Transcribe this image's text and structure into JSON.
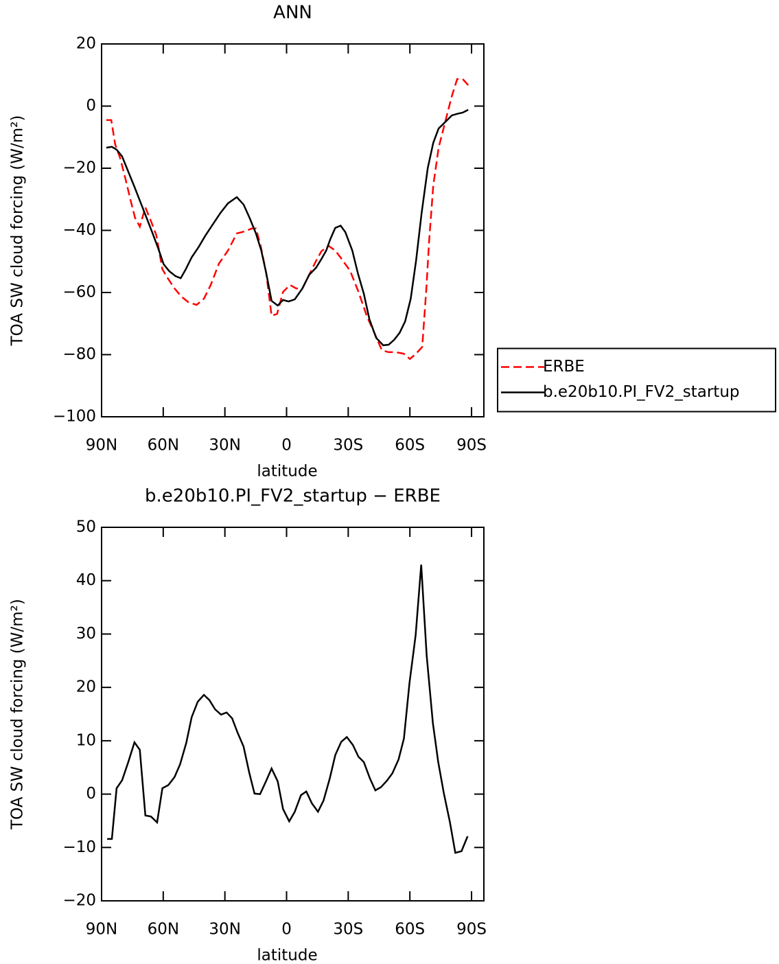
{
  "chart_data": [
    {
      "type": "line",
      "title": "ANN",
      "xlabel": "latitude",
      "ylabel": "TOA SW cloud forcing (W/m²)",
      "xlim": [
        90,
        -96
      ],
      "ylim": [
        -100,
        20
      ],
      "xticks": [
        {
          "value": 90,
          "label": "90N"
        },
        {
          "value": 60,
          "label": "60N"
        },
        {
          "value": 30,
          "label": "30N"
        },
        0,
        {
          "value": -30,
          "label": "30S"
        },
        {
          "value": -60,
          "label": "60S"
        },
        {
          "value": -90,
          "label": "90S"
        }
      ],
      "yticks": [
        20,
        0,
        {
          "value": -20,
          "label": "−20"
        },
        {
          "value": -40,
          "label": "−40"
        },
        {
          "value": -60,
          "label": "−60"
        },
        {
          "value": -80,
          "label": "−80"
        },
        {
          "value": -100,
          "label": "−100"
        }
      ],
      "legend": "right",
      "series": [
        {
          "name": "ERBE",
          "color": "#ff0000",
          "dash": true,
          "x": [
            87.7,
            85.3,
            83.4,
            81,
            78.4,
            76,
            73.7,
            71.4,
            68.7,
            66,
            63.4,
            60.4,
            57.8,
            54.5,
            51.2,
            47.8,
            43.8,
            40.2,
            36.9,
            32.9,
            28.5,
            24.2,
            20.2,
            16.9,
            14.9,
            12.6,
            9.9,
            7.3,
            4.6,
            1.7,
            -1.7,
            -4.7,
            -7.7,
            -11,
            -14.4,
            -17,
            -20.4,
            -23.7,
            -27,
            -31,
            -35,
            -39,
            -42.7,
            -46.4,
            -49.7,
            -53,
            -57,
            -60,
            -63,
            -66,
            -68,
            -69.4,
            -71.4,
            -74,
            -77.4,
            -80.4,
            -83,
            -85.7,
            -88.7
          ],
          "values": [
            -4.5,
            -4.5,
            -12.3,
            -16.7,
            -23.3,
            -30,
            -36,
            -38.8,
            -32.6,
            -37,
            -41.5,
            -52.5,
            -55.4,
            -58.7,
            -61.3,
            -63.1,
            -64,
            -62,
            -57.6,
            -50.7,
            -46.5,
            -41,
            -40.3,
            -39.4,
            -39.4,
            -45,
            -53.8,
            -67.5,
            -66.9,
            -59.8,
            -57.6,
            -58.7,
            -58.7,
            -54.3,
            -49.8,
            -46.7,
            -45,
            -46.5,
            -49.4,
            -53.1,
            -59.8,
            -67.5,
            -73,
            -78.6,
            -79.2,
            -79.2,
            -79.7,
            -81.4,
            -79.7,
            -77.5,
            -58.7,
            -43.2,
            -25.5,
            -13.4,
            -4.5,
            3.2,
            8.7,
            8.7,
            6.5
          ]
        },
        {
          "name": "b.e20b10.PI_FV2_startup",
          "color": "#000000",
          "dash": false,
          "x": [
            87.7,
            85,
            82.7,
            80,
            77,
            74,
            71.4,
            68.4,
            65.4,
            62.4,
            59.8,
            57.1,
            54.1,
            51.5,
            49.2,
            46.2,
            42.8,
            39.5,
            35.5,
            32.2,
            28.5,
            24.2,
            20.9,
            17.9,
            14.9,
            12.3,
            9.9,
            7.3,
            4.3,
            1.7,
            -1,
            -4,
            -7.7,
            -11,
            -14.4,
            -17,
            -19.3,
            -21.3,
            -23.7,
            -26.3,
            -28.6,
            -32,
            -34.7,
            -37.6,
            -40.3,
            -43.6,
            -47,
            -49.7,
            -52.4,
            -55,
            -57.7,
            -60.4,
            -63,
            -65.7,
            -68.7,
            -71.4,
            -74,
            -77.4,
            -80.4,
            -83,
            -85.7,
            -88.4
          ],
          "values": [
            -13.4,
            -13.1,
            -14,
            -16.2,
            -21.1,
            -26,
            -30.4,
            -35.5,
            -40.6,
            -45.9,
            -50.9,
            -53.1,
            -54.7,
            -55.4,
            -52.7,
            -48.7,
            -45.4,
            -41.7,
            -37.7,
            -34.4,
            -31.3,
            -29.3,
            -31.7,
            -36.1,
            -41,
            -46.5,
            -53.8,
            -62.7,
            -64.2,
            -62.4,
            -62.9,
            -62.2,
            -58.7,
            -54.3,
            -52,
            -49.2,
            -46.5,
            -42.8,
            -39.2,
            -38.5,
            -40.6,
            -46.5,
            -53.8,
            -60.4,
            -68.6,
            -74.6,
            -77,
            -76.8,
            -75.2,
            -73,
            -69.3,
            -62,
            -49.8,
            -34.4,
            -20,
            -11.8,
            -7.2,
            -5,
            -3,
            -2.5,
            -2.1,
            -1.2
          ]
        }
      ]
    },
    {
      "type": "line",
      "title": "b.e20b10.PI_FV2_startup − ERBE",
      "xlabel": "latitude",
      "ylabel": "TOA SW cloud forcing (W/m²)",
      "xlim": [
        90,
        -96
      ],
      "ylim": [
        -20,
        50
      ],
      "xticks": [
        {
          "value": 90,
          "label": "90N"
        },
        {
          "value": 60,
          "label": "60N"
        },
        {
          "value": 30,
          "label": "30N"
        },
        0,
        {
          "value": -30,
          "label": "30S"
        },
        {
          "value": -60,
          "label": "60S"
        },
        {
          "value": -90,
          "label": "90S"
        }
      ],
      "yticks": [
        50,
        40,
        30,
        20,
        10,
        0,
        {
          "value": -10,
          "label": "−10"
        },
        {
          "value": -20,
          "label": "−20"
        }
      ],
      "series": [
        {
          "color": "#000000",
          "dash": false,
          "x": [
            87.3,
            85,
            82.7,
            80,
            77,
            74,
            71.4,
            68.7,
            66,
            63,
            60.4,
            57.5,
            54.5,
            51.8,
            48.8,
            46.2,
            43.2,
            40.2,
            37.5,
            34.8,
            31.9,
            29.2,
            26.5,
            23.9,
            20.9,
            18.2,
            15.6,
            12.9,
            9.9,
            7.3,
            4.3,
            1.7,
            -1.3,
            -4,
            -7,
            -9.6,
            -12.3,
            -15.3,
            -18,
            -21,
            -23.7,
            -26.6,
            -29.3,
            -32.3,
            -35,
            -37.6,
            -40.6,
            -43.2,
            -45.9,
            -48.8,
            -51.5,
            -54.5,
            -57.1,
            -59.8,
            -62.8,
            -65.5,
            -68.2,
            -71.2,
            -73.8,
            -76.5,
            -79.5,
            -82.1,
            -85.1,
            -88.1
          ],
          "values": [
            -8.4,
            -8.4,
            1.1,
            2.6,
            6,
            9.7,
            8.3,
            -4,
            -4.2,
            -5.3,
            1.1,
            1.7,
            3.2,
            5.6,
            9.6,
            14.4,
            17.3,
            18.6,
            17.6,
            15.9,
            14.9,
            15.3,
            14.2,
            11.6,
            8.9,
            4.1,
            0.1,
            0,
            2.5,
            4.8,
            2.4,
            -2.8,
            -5.1,
            -3.3,
            -0.2,
            0.5,
            -1.7,
            -3.3,
            -1.2,
            2.9,
            7.3,
            9.8,
            10.7,
            9.2,
            7,
            6,
            2.9,
            0.7,
            1.3,
            2.5,
            3.9,
            6.5,
            10.4,
            20.8,
            29.8,
            43,
            25.9,
            13.3,
            6,
            0.2,
            -5.3,
            -11,
            -10.7,
            -7.9
          ]
        }
      ]
    }
  ]
}
